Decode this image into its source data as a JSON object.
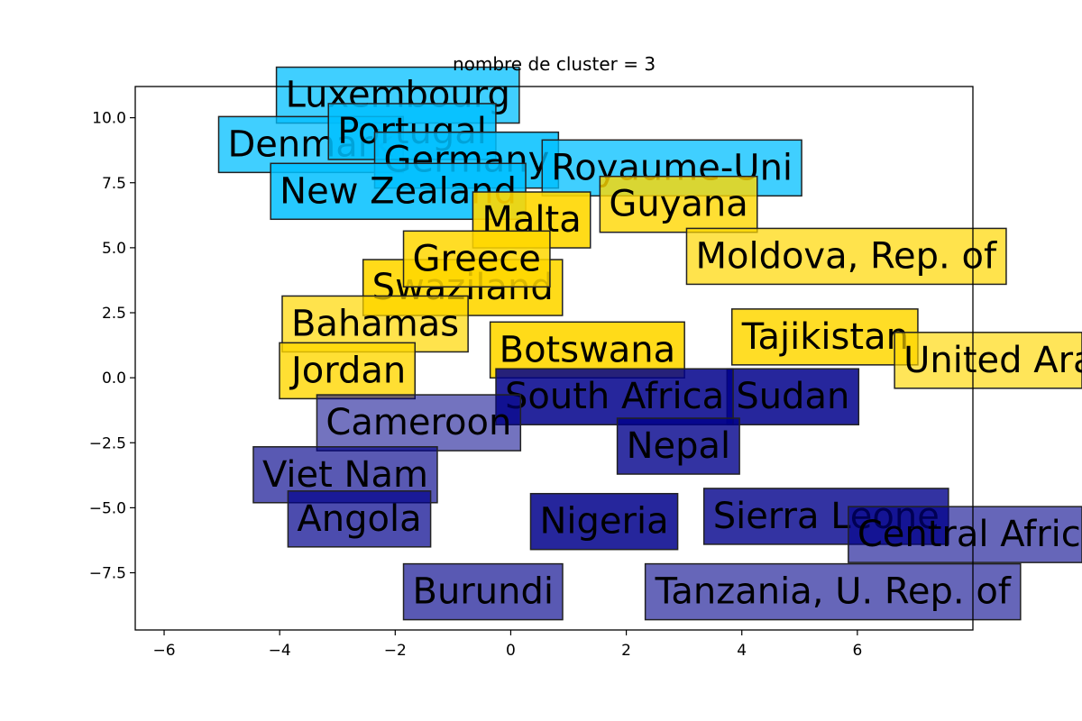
{
  "chart_data": {
    "type": "scatter",
    "title": "nombre de cluster = 3",
    "xlabel": "",
    "ylabel": "",
    "xlim": [
      -6.5,
      8.0
    ],
    "ylim": [
      -9.7,
      11.2
    ],
    "x_ticks": [
      -6,
      -4,
      -2,
      0,
      2,
      4,
      6
    ],
    "y_ticks": [
      -7.5,
      -5.0,
      -2.5,
      0.0,
      2.5,
      5.0,
      7.5,
      10.0
    ],
    "grid": false,
    "clusters": [
      {
        "id": 0,
        "color": "#00008b"
      },
      {
        "id": 1,
        "color": "#ffd700"
      },
      {
        "id": 2,
        "color": "#00bfff"
      }
    ],
    "points": [
      {
        "label": "Luxembourg",
        "x": -3.9,
        "y": 10.8,
        "cluster": 2,
        "alpha": 0.75
      },
      {
        "label": "Denmark",
        "x": -4.9,
        "y": 8.9,
        "cluster": 2,
        "alpha": 0.75
      },
      {
        "label": "Portugal",
        "x": -3.0,
        "y": 9.4,
        "cluster": 2,
        "alpha": 0.85
      },
      {
        "label": "Germany",
        "x": -2.2,
        "y": 8.3,
        "cluster": 2,
        "alpha": 0.85
      },
      {
        "label": "Royaume-Uni",
        "x": 0.7,
        "y": 8.0,
        "cluster": 2,
        "alpha": 0.75
      },
      {
        "label": "New Zealand",
        "x": -4.0,
        "y": 7.1,
        "cluster": 2,
        "alpha": 0.85
      },
      {
        "label": "Swaziland",
        "x": -2.4,
        "y": 3.4,
        "cluster": 1,
        "alpha": 0.9
      },
      {
        "label": "Guyana",
        "x": 1.7,
        "y": 6.6,
        "cluster": 1,
        "alpha": 0.8
      },
      {
        "label": "Malta",
        "x": -0.5,
        "y": 6.0,
        "cluster": 1,
        "alpha": 0.9
      },
      {
        "label": "Moldova, Rep. of",
        "x": 3.2,
        "y": 4.6,
        "cluster": 1,
        "alpha": 0.7
      },
      {
        "label": "Greece",
        "x": -1.7,
        "y": 4.5,
        "cluster": 1,
        "alpha": 0.85
      },
      {
        "label": "Bahamas",
        "x": -3.8,
        "y": 2.0,
        "cluster": 1,
        "alpha": 0.7
      },
      {
        "label": "Jordan",
        "x": -3.8,
        "y": 0.2,
        "cluster": 1,
        "alpha": 0.8
      },
      {
        "label": "Botswana",
        "x": -0.2,
        "y": 1.0,
        "cluster": 1,
        "alpha": 0.9
      },
      {
        "label": "Tajikistan",
        "x": 4.0,
        "y": 1.5,
        "cluster": 1,
        "alpha": 0.85
      },
      {
        "label": "United Arab Emirates",
        "x": 6.8,
        "y": 0.6,
        "cluster": 1,
        "alpha": 0.65
      },
      {
        "label": "Sudan",
        "x": 3.9,
        "y": -0.8,
        "cluster": 0,
        "alpha": 0.85
      },
      {
        "label": "South Africa",
        "x": -0.1,
        "y": -0.8,
        "cluster": 0,
        "alpha": 0.85
      },
      {
        "label": "Cameroon",
        "x": -3.2,
        "y": -1.8,
        "cluster": 0,
        "alpha": 0.55
      },
      {
        "label": "Viet Nam",
        "x": -4.3,
        "y": -3.8,
        "cluster": 0,
        "alpha": 0.65
      },
      {
        "label": "Angola",
        "x": -3.7,
        "y": -5.5,
        "cluster": 0,
        "alpha": 0.7
      },
      {
        "label": "Nigeria",
        "x": 0.5,
        "y": -5.6,
        "cluster": 0,
        "alpha": 0.85
      },
      {
        "label": "Sierra Leone",
        "x": 3.5,
        "y": -5.4,
        "cluster": 0,
        "alpha": 0.8
      },
      {
        "label": "Nepal",
        "x": 2.0,
        "y": -2.7,
        "cluster": 0,
        "alpha": 0.8
      },
      {
        "label": "Central African Rep.",
        "x": 6.0,
        "y": -6.1,
        "cluster": 0,
        "alpha": 0.6
      },
      {
        "label": "Burundi",
        "x": -1.7,
        "y": -8.3,
        "cluster": 0,
        "alpha": 0.65
      },
      {
        "label": "Tanzania, U. Rep. of",
        "x": 2.5,
        "y": -8.3,
        "cluster": 0,
        "alpha": 0.6
      }
    ]
  }
}
